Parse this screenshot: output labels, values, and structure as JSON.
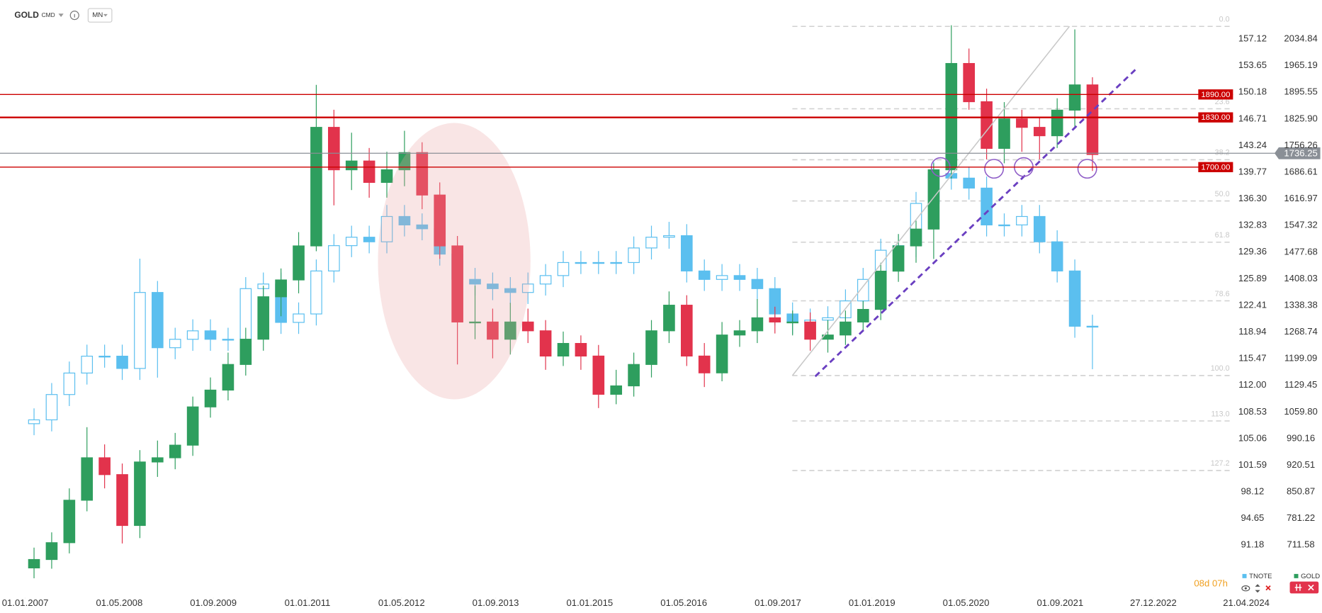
{
  "toolbar": {
    "symbol": "GOLD",
    "market": "CMD",
    "interval": "MN"
  },
  "countdown": "08d 07h",
  "chart_data": {
    "type": "candlestick",
    "xlim": [
      "01.09.2006",
      "01.05.2024"
    ],
    "xticks": [
      "01.01.2007",
      "01.05.2008",
      "01.09.2009",
      "01.01.2011",
      "01.05.2012",
      "01.09.2013",
      "01.01.2015",
      "01.05.2016",
      "01.09.2017",
      "01.01.2019",
      "01.05.2020",
      "01.09.2021",
      "27.12.2022",
      "21.04.2024"
    ],
    "ylim": [
      84.33,
      162.2
    ],
    "yticks": [
      157.12,
      153.65,
      150.18,
      146.71,
      143.24,
      139.77,
      {
        "value": 136.3,
        "label": "136.30"
      },
      132.83,
      129.36,
      125.89,
      122.41,
      118.94,
      115.47,
      {
        "value": 112,
        "label": "112.00"
      },
      108.53,
      105.06,
      101.59,
      98.12,
      94.65,
      91.18
    ],
    "y2lim": [
      574.2,
      2136.8
    ],
    "y2ticks": [
      2034.84,
      1965.19,
      1895.55,
      {
        "value": 1825.9,
        "label": "1825.90"
      },
      1756.26,
      1686.61,
      1616.97,
      1547.32,
      1477.68,
      1408.03,
      1338.38,
      1268.74,
      1199.09,
      1129.45,
      {
        "value": 1059.8,
        "label": "1059.80"
      },
      990.16,
      920.51,
      850.87,
      781.22,
      711.58
    ],
    "x": [
      "01.01.2007",
      "01.04.2007",
      "01.07.2007",
      "01.10.2007",
      "01.01.2008",
      "01.04.2008",
      "01.07.2008",
      "01.10.2008",
      "01.01.2009",
      "01.04.2009",
      "01.07.2009",
      "01.10.2009",
      "01.01.2010",
      "01.04.2010",
      "01.07.2010",
      "01.10.2010",
      "01.01.2011",
      "01.04.2011",
      "01.07.2011",
      "01.10.2011",
      "01.01.2012",
      "01.04.2012",
      "01.07.2012",
      "01.10.2012",
      "01.01.2013",
      "01.04.2013",
      "01.07.2013",
      "01.10.2013",
      "01.01.2014",
      "01.04.2014",
      "01.07.2014",
      "01.10.2014",
      "01.01.2015",
      "01.04.2015",
      "01.07.2015",
      "01.10.2015",
      "01.01.2016",
      "01.04.2016",
      "01.07.2016",
      "01.10.2016",
      "01.01.2017",
      "01.04.2017",
      "01.07.2017",
      "01.10.2017",
      "01.01.2018",
      "01.04.2018",
      "01.07.2018",
      "01.10.2018",
      "01.01.2019",
      "01.04.2019",
      "01.07.2019",
      "01.10.2019",
      "01.01.2020",
      "01.04.2020",
      "01.07.2020",
      "01.10.2020",
      "01.01.2021",
      "01.04.2021",
      "01.07.2021",
      "01.10.2021",
      "01.01.2022"
    ],
    "series": [
      {
        "name": "TNOTE",
        "axis": "y",
        "up_color": "#5bbfef",
        "down_color": "#5bbfef",
        "hollow_up": true,
        "open": [
          107.0,
          107.5,
          110.8,
          113.6,
          115.8,
          115.8,
          114.2,
          124.1,
          116.9,
          118.0,
          119.1,
          118.0,
          118.0,
          124.6,
          125.2,
          120.2,
          121.3,
          126.9,
          130.2,
          131.3,
          130.7,
          134.0,
          132.9,
          132.4,
          129.1,
          125.8,
          125.2,
          124.6,
          124.1,
          125.2,
          126.3,
          128.0,
          128.0,
          128.0,
          128.0,
          129.9,
          131.3,
          131.5,
          126.9,
          125.8,
          126.3,
          125.8,
          124.6,
          121.3,
          120.2,
          120.5,
          120.8,
          123.0,
          125.8,
          129.6,
          130.2,
          135.7,
          139.6,
          139.0,
          137.7,
          132.9,
          132.9,
          134.0,
          130.7,
          126.9,
          119.7
        ],
        "high": [
          109.0,
          112.3,
          115.1,
          117.3,
          117.3,
          117.3,
          128.5,
          125.6,
          119.5,
          120.6,
          120.6,
          119.5,
          126.1,
          126.7,
          126.7,
          122.8,
          128.4,
          131.7,
          132.8,
          132.8,
          135.5,
          135.5,
          134.4,
          133.9,
          130.6,
          127.3,
          126.7,
          126.1,
          126.7,
          127.8,
          129.5,
          129.5,
          129.5,
          129.5,
          131.4,
          132.8,
          133.3,
          133.0,
          128.4,
          127.8,
          127.8,
          127.3,
          126.1,
          122.8,
          122.0,
          122.3,
          124.5,
          127.3,
          131.1,
          131.7,
          137.2,
          141.1,
          141.1,
          140.5,
          139.2,
          134.4,
          135.5,
          135.5,
          132.2,
          128.4,
          121.2
        ],
        "low": [
          105.5,
          106.0,
          109.3,
          112.1,
          114.3,
          112.7,
          112.7,
          113.0,
          115.4,
          116.5,
          116.5,
          116.5,
          116.5,
          123.1,
          118.7,
          118.7,
          119.8,
          125.4,
          128.7,
          129.2,
          129.2,
          131.4,
          130.9,
          127.6,
          124.3,
          123.7,
          123.1,
          122.6,
          122.6,
          123.7,
          124.8,
          126.5,
          126.5,
          126.5,
          126.5,
          128.4,
          129.8,
          125.4,
          124.3,
          124.3,
          124.3,
          123.1,
          119.8,
          118.7,
          118.7,
          119.0,
          119.3,
          121.5,
          124.3,
          128.1,
          128.7,
          134.2,
          137.5,
          136.2,
          131.4,
          131.4,
          131.4,
          129.2,
          125.4,
          118.2,
          114.1
        ],
        "close": [
          107.5,
          110.8,
          113.6,
          115.8,
          115.8,
          114.2,
          124.1,
          116.9,
          118.0,
          119.1,
          118.0,
          118.0,
          124.6,
          125.2,
          120.2,
          121.3,
          126.9,
          130.2,
          131.3,
          130.7,
          134.0,
          132.9,
          132.4,
          129.1,
          125.8,
          125.2,
          124.6,
          124.1,
          125.2,
          126.3,
          128.0,
          128.0,
          128.0,
          128.0,
          129.9,
          131.3,
          131.5,
          126.9,
          125.8,
          126.3,
          125.8,
          124.6,
          121.3,
          120.2,
          120.5,
          120.8,
          123.0,
          125.8,
          129.6,
          130.2,
          135.7,
          139.6,
          139.0,
          137.7,
          132.9,
          132.9,
          134.0,
          130.7,
          126.9,
          119.7,
          119.7
        ]
      },
      {
        "name": "GOLD",
        "axis": "y2",
        "up_color": "#2e9e5e",
        "down_color": "#e2334c",
        "hollow_up": false,
        "open": [
          652,
          674,
          718,
          829,
          940,
          896,
          763,
          929,
          940,
          973,
          1073,
          1117,
          1184,
          1250,
          1361,
          1405,
          1494,
          1804,
          1693,
          1716,
          1660,
          1693,
          1738,
          1627,
          1494,
          1295,
          1295,
          1250,
          1295,
          1272,
          1206,
          1239,
          1206,
          1106,
          1128,
          1184,
          1272,
          1339,
          1206,
          1162,
          1261,
          1272,
          1306,
          1295,
          1295,
          1250,
          1261,
          1295,
          1328,
          1428,
          1494,
          1538,
          1693,
          1971,
          1871,
          1749,
          1826,
          1804,
          1782,
          1849,
          1915
        ],
        "high": [
          705,
          745,
          860,
          1020,
          975,
          925,
          960,
          985,
          1005,
          1100,
          1150,
          1215,
          1280,
          1390,
          1435,
          1530,
          1915,
          1850,
          1790,
          1750,
          1740,
          1795,
          1765,
          1660,
          1520,
          1390,
          1330,
          1345,
          1330,
          1300,
          1270,
          1260,
          1235,
          1170,
          1215,
          1300,
          1375,
          1365,
          1240,
          1295,
          1300,
          1355,
          1335,
          1325,
          1320,
          1300,
          1325,
          1350,
          1450,
          1525,
          1560,
          1710,
          2071,
          2010,
          1905,
          1870,
          1850,
          1830,
          1880,
          2060,
          1935
        ],
        "low": [
          625,
          650,
          690,
          800,
          860,
          716,
          730,
          890,
          910,
          945,
          1045,
          1090,
          1155,
          1220,
          1310,
          1370,
          1480,
          1600,
          1640,
          1620,
          1620,
          1650,
          1590,
          1460,
          1184,
          1250,
          1200,
          1210,
          1240,
          1170,
          1180,
          1170,
          1070,
          1080,
          1100,
          1150,
          1240,
          1180,
          1125,
          1140,
          1230,
          1240,
          1265,
          1260,
          1220,
          1215,
          1235,
          1270,
          1300,
          1400,
          1450,
          1460,
          1670,
          1850,
          1720,
          1710,
          1740,
          1720,
          1750,
          1800,
          1690
        ],
        "close": [
          674,
          718,
          829,
          940,
          896,
          763,
          929,
          940,
          973,
          1073,
          1117,
          1184,
          1250,
          1361,
          1405,
          1494,
          1804,
          1693,
          1716,
          1660,
          1693,
          1738,
          1627,
          1494,
          1295,
          1295,
          1250,
          1295,
          1272,
          1206,
          1239,
          1206,
          1106,
          1128,
          1184,
          1272,
          1339,
          1206,
          1162,
          1261,
          1272,
          1306,
          1295,
          1295,
          1250,
          1261,
          1295,
          1328,
          1428,
          1494,
          1538,
          1693,
          1971,
          1871,
          1749,
          1826,
          1804,
          1782,
          1849,
          1915,
          1733
        ]
      }
    ],
    "levels": [
      {
        "value": 1890,
        "label": "1890.00",
        "color": "#cc0000"
      },
      {
        "value": 1830,
        "label": "1830.00",
        "color": "#cc0000"
      },
      {
        "value": 1700,
        "label": "1700.00",
        "color": "#cc0000"
      }
    ],
    "last_price": {
      "value": 1736.25,
      "label": "1736.25",
      "color": "#8a8f96"
    },
    "fibonacci": {
      "high": 2068,
      "low": 1155,
      "levels": [
        {
          "value": 0,
          "label": "0.0"
        },
        23.6,
        38.2,
        {
          "value": 50,
          "label": "50.0"
        },
        61.8,
        78.6,
        {
          "value": 100,
          "label": "100.0"
        },
        {
          "value": 113,
          "label": "113.0"
        },
        127.2
      ]
    }
  }
}
